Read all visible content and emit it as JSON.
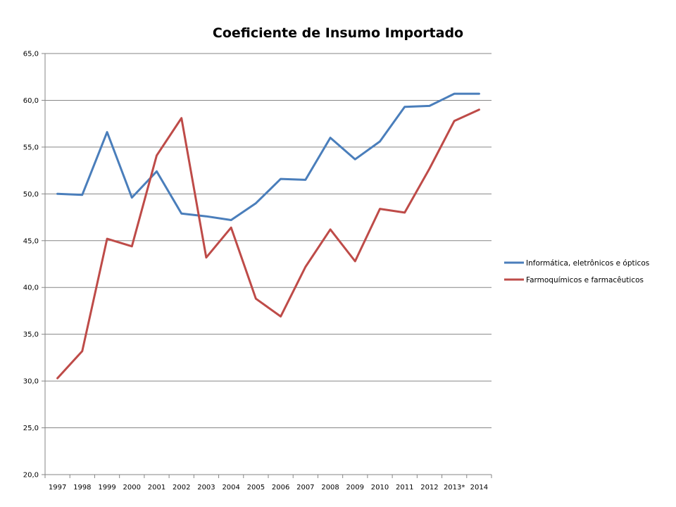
{
  "chart_data": {
    "type": "line",
    "title": "Coeficiente de Insumo Importado",
    "xlabel": "",
    "ylabel": "",
    "ylim": [
      20,
      65
    ],
    "ytick_step": 5,
    "ytick_labels": [
      "20,0",
      "25,0",
      "30,0",
      "35,0",
      "40,0",
      "45,0",
      "50,0",
      "55,0",
      "60,0",
      "65,0"
    ],
    "grid": "horizontal",
    "legend_position": "right",
    "categories": [
      "1997",
      "1998",
      "1999",
      "2000",
      "2001",
      "2002",
      "2003",
      "2004",
      "2005",
      "2006",
      "2007",
      "2008",
      "2009",
      "2010",
      "2011",
      "2012",
      "2013*",
      "2014"
    ],
    "series": [
      {
        "name": "Informática, eletrônicos e ópticos",
        "color": "#4A7EBB",
        "values": [
          50.0,
          49.9,
          56.6,
          49.6,
          52.4,
          47.9,
          47.6,
          47.2,
          49.0,
          51.6,
          51.5,
          56.0,
          53.7,
          55.6,
          59.3,
          59.4,
          60.7,
          60.7
        ]
      },
      {
        "name": "Farmoquímicos e farmacêuticos",
        "color": "#BE4B48",
        "values": [
          30.3,
          33.2,
          45.2,
          44.4,
          54.1,
          58.1,
          43.2,
          46.4,
          38.8,
          36.9,
          42.2,
          46.2,
          42.8,
          48.4,
          48.0,
          52.7,
          57.8,
          59.0
        ]
      }
    ]
  }
}
